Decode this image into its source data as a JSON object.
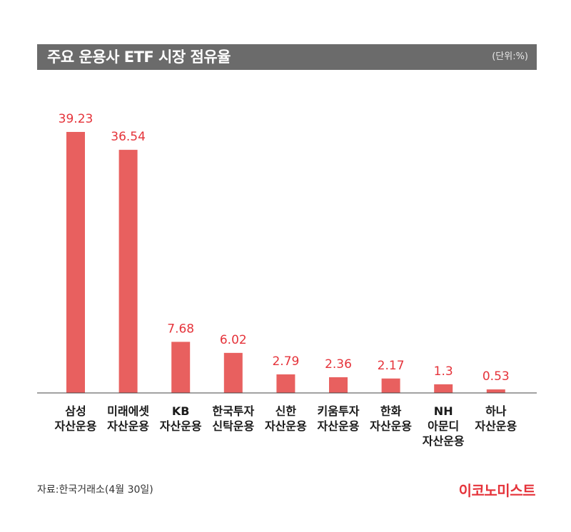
{
  "header": {
    "title": "주요 운용사 ETF 시장 점유율",
    "unit": "(단위:%)"
  },
  "footer": {
    "source": "자료:한국거래소(4월 30일)",
    "logo": "이코노미스트"
  },
  "colors": {
    "bar": "#e8605f",
    "label": "#e5333a",
    "title_bg": "#6b6b6b"
  },
  "chart_data": {
    "type": "bar",
    "categories": [
      [
        "삼성",
        "자산운용"
      ],
      [
        "미래에셋",
        "자산운용"
      ],
      [
        "KB",
        "자산운용"
      ],
      [
        "한국투자",
        "신탁운용"
      ],
      [
        "신한",
        "자산운용"
      ],
      [
        "키움투자",
        "자산운용"
      ],
      [
        "한화",
        "자산운용"
      ],
      [
        "NH",
        "아문디",
        "자산운용"
      ],
      [
        "하나",
        "자산운용"
      ]
    ],
    "values": [
      39.23,
      36.54,
      7.68,
      6.02,
      2.79,
      2.36,
      2.17,
      1.3,
      0.53
    ],
    "value_labels": [
      "39.23",
      "36.54",
      "7.68",
      "6.02",
      "2.79",
      "2.36",
      "2.17",
      "1.3",
      "0.53"
    ],
    "ylim": [
      0,
      39.23
    ]
  }
}
